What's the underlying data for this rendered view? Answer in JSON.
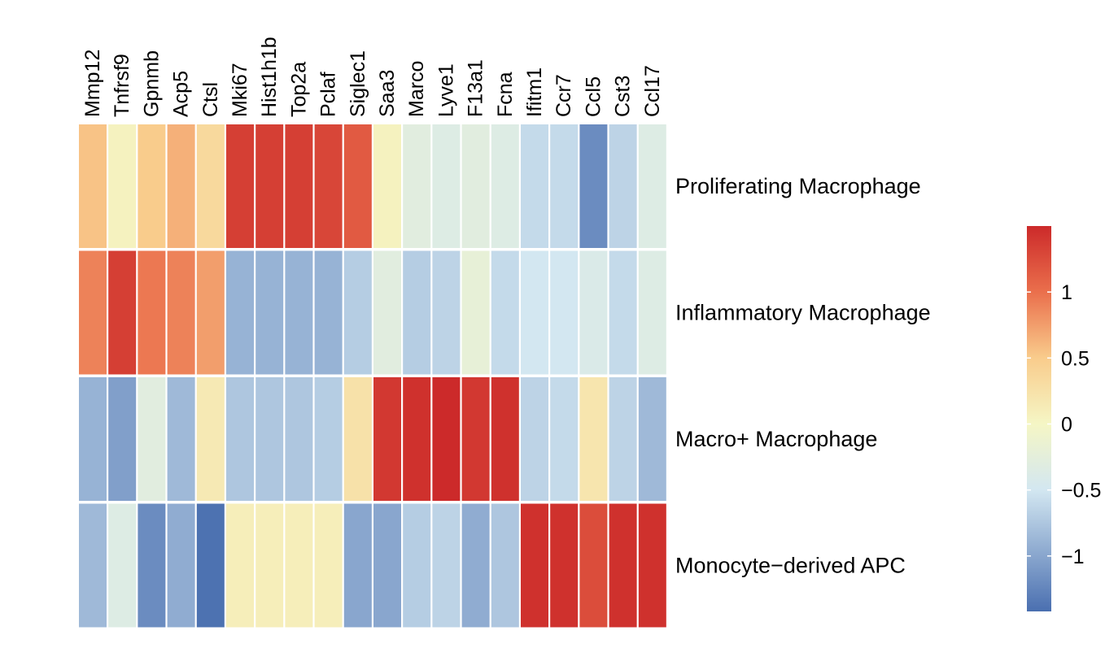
{
  "chart_data": {
    "type": "heatmap",
    "columns": [
      "Mmp12",
      "Tnfrsf9",
      "Gpnmb",
      "Acp5",
      "Ctsl",
      "Mki67",
      "Hist1h1b",
      "Top2a",
      "Pclaf",
      "Siglec1",
      "Saa3",
      "Marco",
      "Lyve1",
      "F13a1",
      "Fcna",
      "Ifitm1",
      "Ccr7",
      "Ccl5",
      "Cst3",
      "Ccl17"
    ],
    "rows": [
      "Proliferating Macrophage",
      "Inflammatory Macrophage",
      "Macro+ Macrophage",
      "Monocyte−derived APC"
    ],
    "values": [
      [
        0.55,
        0.05,
        0.5,
        0.65,
        0.35,
        1.35,
        1.35,
        1.35,
        1.3,
        1.15,
        0.05,
        -0.3,
        -0.35,
        -0.3,
        -0.35,
        -0.6,
        -0.6,
        -1.2,
        -0.65,
        -0.35
      ],
      [
        0.9,
        1.35,
        0.95,
        0.9,
        0.75,
        -0.9,
        -0.9,
        -0.9,
        -0.9,
        -0.7,
        -0.3,
        -0.7,
        -0.65,
        -0.2,
        -0.6,
        -0.5,
        -0.5,
        -0.4,
        -0.6,
        -0.35
      ],
      [
        -0.9,
        -1.05,
        -0.3,
        -0.85,
        0.15,
        -0.75,
        -0.75,
        -0.75,
        -0.7,
        0.25,
        1.4,
        1.45,
        1.5,
        1.4,
        1.45,
        -0.65,
        -0.6,
        0.2,
        -0.65,
        -0.85
      ],
      [
        -0.85,
        -0.35,
        -1.2,
        -0.95,
        -1.4,
        0.1,
        0.1,
        0.1,
        0.1,
        -1.0,
        -1.0,
        -0.7,
        -0.65,
        -0.95,
        -0.75,
        1.45,
        1.45,
        1.25,
        1.45,
        1.45
      ]
    ],
    "color_scale": {
      "stops": [
        {
          "value": -1.42,
          "color": "#4a6fb0"
        },
        {
          "value": -0.5,
          "color": "#d3e7f1"
        },
        {
          "value": 0,
          "color": "#f5f6c5"
        },
        {
          "value": 0.5,
          "color": "#f9cc8c"
        },
        {
          "value": 1.0,
          "color": "#ea6f4c"
        },
        {
          "value": 1.5,
          "color": "#cc2a2a"
        }
      ]
    },
    "legend": {
      "ticks": [
        1,
        0.5,
        0,
        -0.5,
        -1
      ],
      "tick_labels": [
        "1",
        "0.5",
        "0",
        "−0.5",
        "−1"
      ],
      "range": [
        -1.42,
        1.5
      ],
      "placement": "right"
    }
  }
}
